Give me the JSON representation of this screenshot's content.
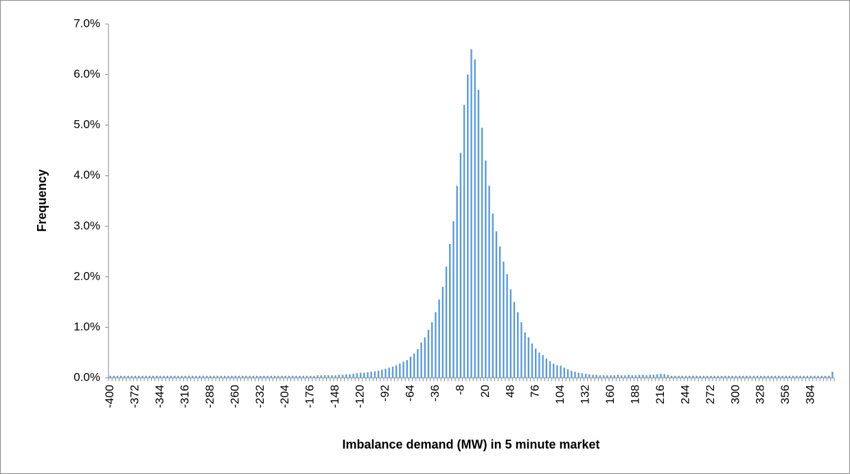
{
  "chart_data": {
    "type": "bar",
    "x_label": "Imbalance demand (MW) in 5 minute market",
    "y_label": "Frequency",
    "color": "#5b9bd5",
    "ylim": [
      0,
      7
    ],
    "yticks": [
      {
        "value": 0,
        "label": "0.0%"
      },
      {
        "value": 1,
        "label": "1.0%"
      },
      {
        "value": 2,
        "label": "2.0%"
      },
      {
        "value": 3,
        "label": "3.0%"
      },
      {
        "value": 4,
        "label": "4.0%"
      },
      {
        "value": 5,
        "label": "5.0%"
      },
      {
        "value": 6,
        "label": "6.0%"
      },
      {
        "value": 7,
        "label": "7.0%"
      }
    ],
    "categories": [
      "-400",
      null,
      null,
      null,
      null,
      null,
      null,
      "-372",
      null,
      null,
      null,
      null,
      null,
      null,
      "-344",
      null,
      null,
      null,
      null,
      null,
      null,
      "-316",
      null,
      null,
      null,
      null,
      null,
      null,
      "-288",
      null,
      null,
      null,
      null,
      null,
      null,
      "-260",
      null,
      null,
      null,
      null,
      null,
      null,
      "-232",
      null,
      null,
      null,
      null,
      null,
      null,
      "-204",
      null,
      null,
      null,
      null,
      null,
      null,
      "-176",
      null,
      null,
      null,
      null,
      null,
      null,
      "-148",
      null,
      null,
      null,
      null,
      null,
      null,
      "-120",
      null,
      null,
      null,
      null,
      null,
      null,
      "-92",
      null,
      null,
      null,
      null,
      null,
      null,
      "-64",
      null,
      null,
      null,
      null,
      null,
      null,
      "-36",
      null,
      null,
      null,
      null,
      null,
      null,
      "-8",
      null,
      null,
      null,
      null,
      null,
      null,
      "20",
      null,
      null,
      null,
      null,
      null,
      null,
      "48",
      null,
      null,
      null,
      null,
      null,
      null,
      "76",
      null,
      null,
      null,
      null,
      null,
      null,
      "104",
      null,
      null,
      null,
      null,
      null,
      null,
      "132",
      null,
      null,
      null,
      null,
      null,
      null,
      "160",
      null,
      null,
      null,
      null,
      null,
      null,
      "188",
      null,
      null,
      null,
      null,
      null,
      null,
      "216",
      null,
      null,
      null,
      null,
      null,
      null,
      "244",
      null,
      null,
      null,
      null,
      null,
      null,
      "272",
      null,
      null,
      null,
      null,
      null,
      null,
      "300",
      null,
      null,
      null,
      null,
      null,
      null,
      "328",
      null,
      null,
      null,
      null,
      null,
      null,
      "356",
      null,
      null,
      null,
      null,
      null,
      null,
      "384",
      null,
      null,
      null,
      null,
      null,
      null
    ],
    "values": [
      0.04,
      0.04,
      0.04,
      0.04,
      0.04,
      0.04,
      0.04,
      0.04,
      0.04,
      0.04,
      0.04,
      0.04,
      0.04,
      0.04,
      0.04,
      0.04,
      0.04,
      0.04,
      0.04,
      0.04,
      0.04,
      0.04,
      0.04,
      0.04,
      0.04,
      0.04,
      0.04,
      0.04,
      0.04,
      0.04,
      0.04,
      0.04,
      0.04,
      0.04,
      0.04,
      0.04,
      0.04,
      0.04,
      0.04,
      0.04,
      0.04,
      0.04,
      0.04,
      0.04,
      0.04,
      0.04,
      0.04,
      0.04,
      0.04,
      0.04,
      0.04,
      0.04,
      0.04,
      0.04,
      0.04,
      0.04,
      0.04,
      0.04,
      0.05,
      0.05,
      0.05,
      0.05,
      0.05,
      0.05,
      0.06,
      0.06,
      0.07,
      0.07,
      0.08,
      0.09,
      0.1,
      0.1,
      0.11,
      0.12,
      0.13,
      0.14,
      0.16,
      0.18,
      0.2,
      0.22,
      0.25,
      0.28,
      0.32,
      0.35,
      0.42,
      0.48,
      0.57,
      0.7,
      0.8,
      0.95,
      1.1,
      1.3,
      1.55,
      1.8,
      2.2,
      2.65,
      3.1,
      3.8,
      4.45,
      5.4,
      6.0,
      6.5,
      6.3,
      5.7,
      4.95,
      4.3,
      3.8,
      3.25,
      2.9,
      2.6,
      2.3,
      2.05,
      1.75,
      1.5,
      1.3,
      1.1,
      0.9,
      0.8,
      0.68,
      0.58,
      0.5,
      0.45,
      0.38,
      0.33,
      0.28,
      0.25,
      0.24,
      0.2,
      0.17,
      0.14,
      0.12,
      0.1,
      0.09,
      0.08,
      0.07,
      0.06,
      0.06,
      0.05,
      0.05,
      0.05,
      0.05,
      0.05,
      0.06,
      0.05,
      0.05,
      0.06,
      0.05,
      0.05,
      0.06,
      0.06,
      0.05,
      0.06,
      0.06,
      0.07,
      0.08,
      0.07,
      0.06,
      0.04,
      0.04,
      0.04,
      0.04,
      0.04,
      0.04,
      0.04,
      0.04,
      0.04,
      0.04,
      0.04,
      0.04,
      0.04,
      0.04,
      0.04,
      0.04,
      0.04,
      0.04,
      0.04,
      0.04,
      0.04,
      0.04,
      0.04,
      0.04,
      0.04,
      0.04,
      0.04,
      0.04,
      0.04,
      0.04,
      0.04,
      0.04,
      0.04,
      0.04,
      0.04,
      0.04,
      0.04,
      0.04,
      0.04,
      0.04,
      0.04,
      0.04,
      0.04,
      0.04,
      0.04,
      0.12
    ]
  }
}
